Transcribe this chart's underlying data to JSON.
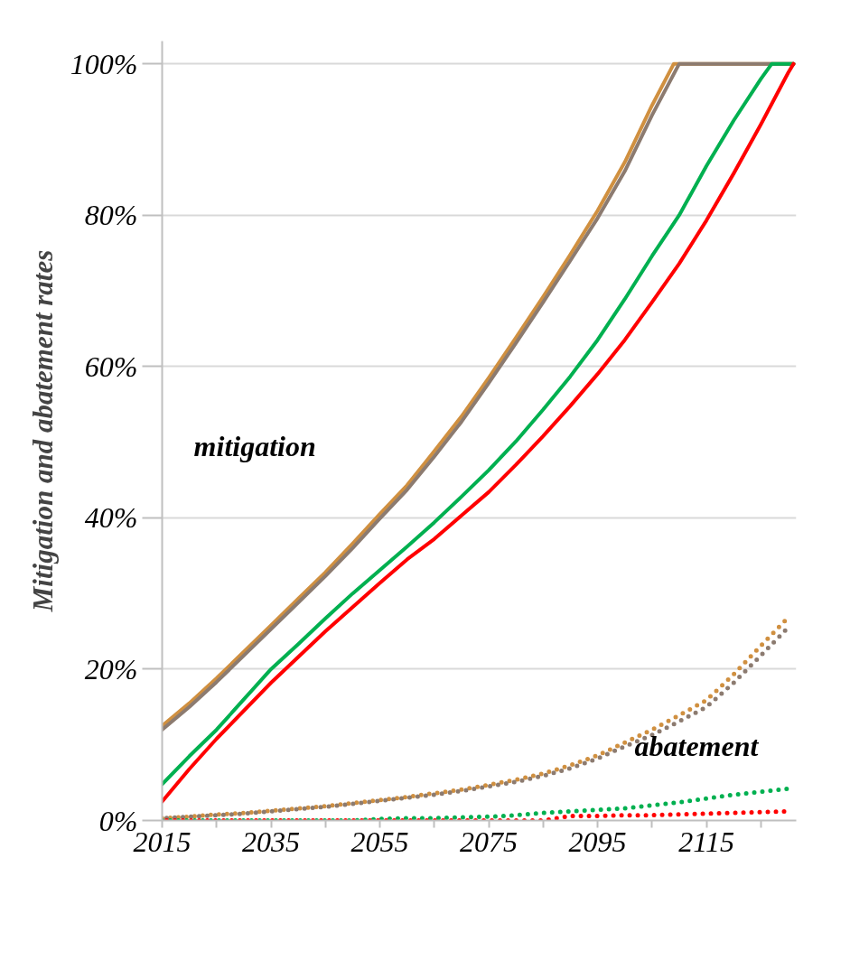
{
  "chart_data": {
    "type": "line",
    "ylabel": "Mitigation and abatement rates",
    "x": [
      2015,
      2020,
      2025,
      2030,
      2035,
      2040,
      2045,
      2050,
      2055,
      2060,
      2065,
      2070,
      2075,
      2080,
      2085,
      2090,
      2095,
      2100,
      2105,
      2110,
      2115,
      2120,
      2125,
      2130
    ],
    "series": [
      {
        "color": "#d09040",
        "line_style": "solid",
        "x": [
          2015,
          2020,
          2025,
          2030,
          2035,
          2040,
          2045,
          2050,
          2055,
          2060,
          2065,
          2070,
          2075,
          2080,
          2085,
          2090,
          2095,
          2100,
          2105,
          2109,
          2131
        ],
        "values": [
          12.5,
          15.5,
          18.8,
          22.3,
          25.8,
          29.3,
          32.8,
          36.6,
          40.5,
          44.3,
          48.8,
          53.4,
          58.5,
          63.8,
          69.2,
          74.8,
          80.6,
          87,
          94.5,
          100,
          100
        ]
      },
      {
        "color": "#8c7b70",
        "line_style": "solid",
        "x": [
          2015,
          2020,
          2025,
          2030,
          2035,
          2040,
          2045,
          2050,
          2055,
          2060,
          2065,
          2070,
          2075,
          2080,
          2085,
          2090,
          2095,
          2100,
          2105,
          2110,
          2131
        ],
        "values": [
          12,
          15,
          18.3,
          21.8,
          25.3,
          28.8,
          32.3,
          36,
          39.9,
          43.7,
          48.1,
          52.7,
          57.8,
          63.1,
          68.5,
          74,
          79.6,
          85.8,
          93.2,
          100,
          100
        ]
      },
      {
        "color": "#00b050",
        "line_style": "solid",
        "x": [
          2015,
          2020,
          2025,
          2030,
          2035,
          2040,
          2045,
          2050,
          2055,
          2060,
          2065,
          2070,
          2075,
          2080,
          2085,
          2090,
          2095,
          2100,
          2105,
          2110,
          2115,
          2120,
          2125,
          2127,
          2131
        ],
        "values": [
          4.8,
          8.5,
          12,
          16,
          20,
          23.3,
          26.7,
          30,
          33.1,
          36.2,
          39.4,
          42.8,
          46.3,
          50.1,
          54.3,
          58.7,
          63.5,
          68.9,
          74.6,
          80,
          86.5,
          92.5,
          98,
          100,
          100
        ]
      },
      {
        "color": "#ff0000",
        "line_style": "solid",
        "x": [
          2015,
          2020,
          2025,
          2030,
          2035,
          2040,
          2045,
          2050,
          2055,
          2060,
          2065,
          2070,
          2075,
          2080,
          2085,
          2090,
          2095,
          2100,
          2105,
          2110,
          2115,
          2120,
          2125,
          2130,
          2131
        ],
        "values": [
          2.5,
          6.8,
          10.8,
          14.5,
          18.2,
          21.6,
          25,
          28.2,
          31.4,
          34.5,
          37.2,
          40.3,
          43.4,
          47,
          50.8,
          54.8,
          59,
          63.5,
          68.5,
          73.6,
          79.3,
          85.5,
          92,
          98.8,
          100
        ]
      },
      {
        "color": "#d09040",
        "line_style": "dotted",
        "values": [
          0.3,
          0.5,
          0.8,
          1,
          1.3,
          1.6,
          1.9,
          2.3,
          2.7,
          3.1,
          3.6,
          4.1,
          4.7,
          5.4,
          6.2,
          7.3,
          8.6,
          10.3,
          12,
          13.9,
          15.9,
          19.3,
          23.1,
          26.8
        ]
      },
      {
        "color": "#8c7b70",
        "line_style": "dotted",
        "values": [
          0.3,
          0.5,
          0.7,
          0.9,
          1.2,
          1.5,
          1.8,
          2.2,
          2.6,
          3,
          3.4,
          3.9,
          4.5,
          5.1,
          5.9,
          6.9,
          8.2,
          9.8,
          11.3,
          13.1,
          15,
          18.2,
          21.8,
          25.5
        ]
      },
      {
        "color": "#00b050",
        "line_style": "dotted",
        "values": [
          0,
          0,
          0,
          0,
          0,
          0,
          0,
          0,
          0.2,
          0.3,
          0.3,
          0.4,
          0.5,
          0.7,
          1,
          1.2,
          1.4,
          1.6,
          2,
          2.4,
          2.9,
          3.4,
          3.8,
          4.2
        ]
      },
      {
        "color": "#ff0000",
        "line_style": "dotted",
        "values": [
          0,
          0,
          0,
          0,
          0,
          0,
          0,
          0,
          0,
          0,
          0,
          0,
          0,
          0,
          0,
          0.6,
          0.6,
          0.7,
          0.7,
          0.8,
          0.9,
          1,
          1.1,
          1.2
        ]
      }
    ],
    "xlim": [
      2015,
      2131.5
    ],
    "xticks": [
      2015,
      {
        "value": 2025,
        "label": null
      },
      2035,
      {
        "value": 2045,
        "label": null
      },
      2055,
      {
        "value": 2065,
        "label": null
      },
      2075,
      {
        "value": 2085,
        "label": null
      },
      2095,
      {
        "value": 2105,
        "label": null
      },
      2115,
      {
        "value": 2125,
        "label": null
      }
    ],
    "ylim": [
      0,
      103
    ],
    "yticks": [
      {
        "value": 0,
        "label": "0%"
      },
      {
        "value": 20,
        "label": "20%"
      },
      {
        "value": 40,
        "label": "40%"
      },
      {
        "value": 60,
        "label": "60%"
      },
      {
        "value": 80,
        "label": "80%"
      },
      {
        "value": 100,
        "label": "100%"
      }
    ],
    "grid": "y",
    "annotations": [
      "mitigation",
      "abatement"
    ]
  }
}
